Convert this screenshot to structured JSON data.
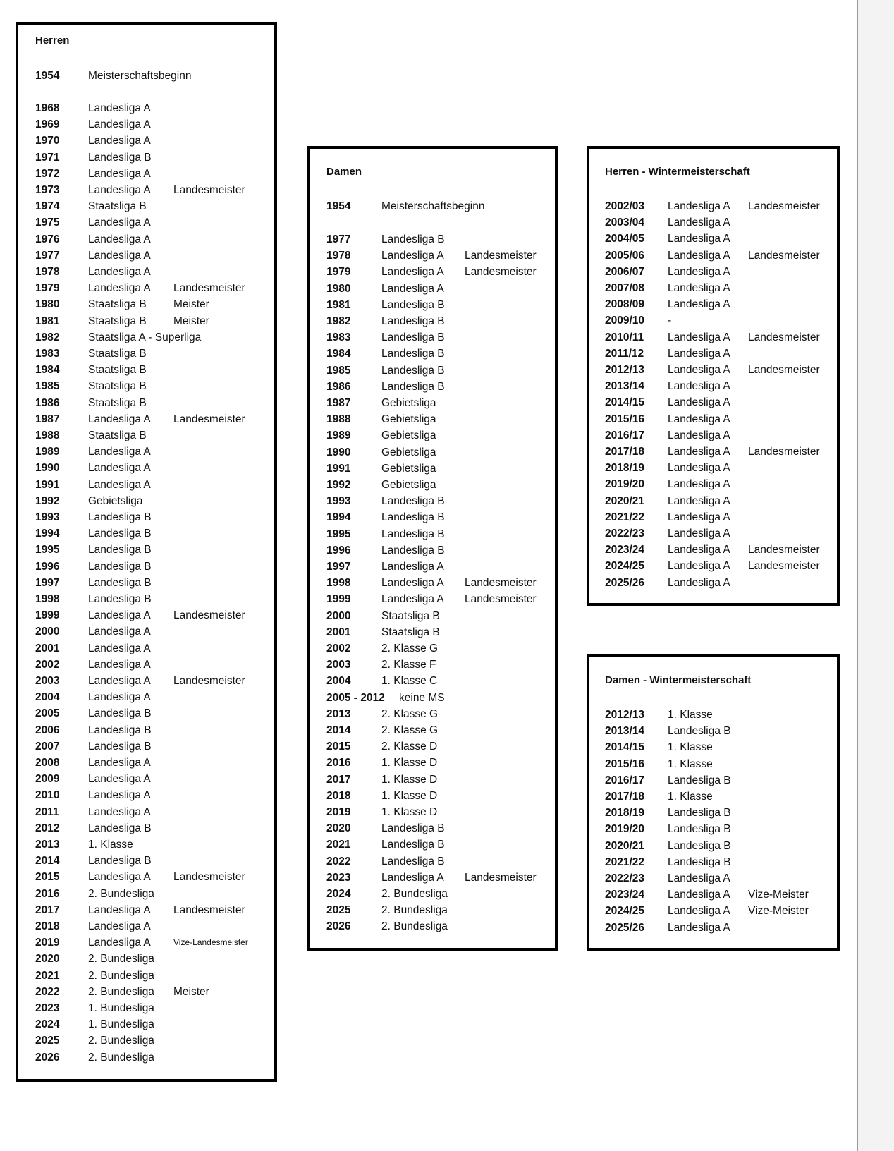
{
  "herren": {
    "title": "Herren",
    "start": [
      "1954",
      "Meisterschaftsbeginn"
    ],
    "rows": [
      [
        "1968",
        "Landesliga A",
        ""
      ],
      [
        "1969",
        "Landesliga A",
        ""
      ],
      [
        "1970",
        "Landesliga A",
        ""
      ],
      [
        "1971",
        "Landesliga B",
        ""
      ],
      [
        "1972",
        "Landesliga A",
        ""
      ],
      [
        "1973",
        "Landesliga A",
        "Landesmeister"
      ],
      [
        "1974",
        "Staatsliga B",
        ""
      ],
      [
        "1975",
        "Landesliga A",
        ""
      ],
      [
        "1976",
        "Landesliga A",
        ""
      ],
      [
        "1977",
        "Landesliga A",
        ""
      ],
      [
        "1978",
        "Landesliga A",
        ""
      ],
      [
        "1979",
        "Landesliga A",
        "Landesmeister"
      ],
      [
        "1980",
        "Staatsliga B",
        "Meister"
      ],
      [
        "1981",
        "Staatsliga B",
        "Meister"
      ],
      [
        "1982",
        "Staatsliga A - Superliga",
        ""
      ],
      [
        "1983",
        "Staatsliga B",
        ""
      ],
      [
        "1984",
        "Staatsliga B",
        ""
      ],
      [
        "1985",
        "Staatsliga B",
        ""
      ],
      [
        "1986",
        "Staatsliga B",
        ""
      ],
      [
        "1987",
        "Landesliga A",
        "Landesmeister"
      ],
      [
        "1988",
        "Staatsliga B",
        ""
      ],
      [
        "1989",
        "Landesliga A",
        ""
      ],
      [
        "1990",
        "Landesliga A",
        ""
      ],
      [
        "1991",
        "Landesliga A",
        ""
      ],
      [
        "1992",
        "Gebietsliga",
        ""
      ],
      [
        "1993",
        "Landesliga B",
        ""
      ],
      [
        "1994",
        "Landesliga B",
        ""
      ],
      [
        "1995",
        "Landesliga B",
        ""
      ],
      [
        "1996",
        "Landesliga B",
        ""
      ],
      [
        "1997",
        "Landesliga B",
        ""
      ],
      [
        "1998",
        "Landesliga B",
        ""
      ],
      [
        "1999",
        "Landesliga A",
        "Landesmeister"
      ],
      [
        "2000",
        "Landesliga A",
        ""
      ],
      [
        "2001",
        "Landesliga A",
        ""
      ],
      [
        "2002",
        "Landesliga A",
        ""
      ],
      [
        "2003",
        "Landesliga A",
        "Landesmeister"
      ],
      [
        "2004",
        "Landesliga A",
        ""
      ],
      [
        "2005",
        "Landesliga B",
        ""
      ],
      [
        "2006",
        "Landesliga B",
        ""
      ],
      [
        "2007",
        "Landesliga B",
        ""
      ],
      [
        "2008",
        "Landesliga A",
        ""
      ],
      [
        "2009",
        "Landesliga A",
        ""
      ],
      [
        "2010",
        "Landesliga A",
        ""
      ],
      [
        "2011",
        "Landesliga A",
        ""
      ],
      [
        "2012",
        "Landesliga B",
        ""
      ],
      [
        "2013",
        "1. Klasse",
        ""
      ],
      [
        "2014",
        "Landesliga B",
        ""
      ],
      [
        "2015",
        "Landesliga A",
        "Landesmeister"
      ],
      [
        "2016",
        "2. Bundesliga",
        ""
      ],
      [
        "2017",
        "Landesliga A",
        "Landesmeister"
      ],
      [
        "2018",
        "Landesliga A",
        ""
      ],
      [
        "2019",
        "Landesliga A",
        "Vize-Landesmeister"
      ],
      [
        "2020",
        "2. Bundesliga",
        ""
      ],
      [
        "2021",
        "2. Bundesliga",
        ""
      ],
      [
        "2022",
        "2. Bundesliga",
        "Meister"
      ],
      [
        "2023",
        "1. Bundesliga",
        ""
      ],
      [
        "2024",
        "1. Bundesliga",
        ""
      ],
      [
        "2025",
        "2. Bundesliga",
        ""
      ],
      [
        "2026",
        "2. Bundesliga",
        ""
      ]
    ]
  },
  "damen": {
    "title": "Damen",
    "start": [
      "1954",
      "Meisterschaftsbeginn"
    ],
    "rows": [
      [
        "1977",
        "Landesliga B",
        ""
      ],
      [
        "1978",
        "Landesliga A",
        "Landesmeister"
      ],
      [
        "1979",
        "Landesliga A",
        "Landesmeister"
      ],
      [
        "1980",
        "Landesliga A",
        ""
      ],
      [
        "1981",
        "Landesliga B",
        ""
      ],
      [
        "1982",
        "Landesliga B",
        ""
      ],
      [
        "1983",
        "Landesliga B",
        ""
      ],
      [
        "1984",
        "Landesliga B",
        ""
      ],
      [
        "1985",
        "Landesliga B",
        ""
      ],
      [
        "1986",
        "Landesliga B",
        ""
      ],
      [
        "1987",
        "Gebietsliga",
        ""
      ],
      [
        "1988",
        "Gebietsliga",
        ""
      ],
      [
        "1989",
        "Gebietsliga",
        ""
      ],
      [
        "1990",
        "Gebietsliga",
        ""
      ],
      [
        "1991",
        "Gebietsliga",
        ""
      ],
      [
        "1992",
        "Gebietsliga",
        ""
      ],
      [
        "1993",
        "Landesliga B",
        ""
      ],
      [
        "1994",
        "Landesliga B",
        ""
      ],
      [
        "1995",
        "Landesliga B",
        ""
      ],
      [
        "1996",
        "Landesliga B",
        ""
      ],
      [
        "1997",
        "Landesliga A",
        ""
      ],
      [
        "1998",
        "Landesliga A",
        "Landesmeister"
      ],
      [
        "1999",
        "Landesliga A",
        "Landesmeister"
      ],
      [
        "2000",
        "Staatsliga B",
        ""
      ],
      [
        "2001",
        "Staatsliga B",
        ""
      ],
      [
        "2002",
        "2. Klasse G",
        ""
      ],
      [
        "2003",
        "2. Klasse F",
        ""
      ],
      [
        "2004",
        "1. Klasse C",
        ""
      ],
      [
        "2005 - 2012",
        "keine MS",
        ""
      ],
      [
        "2013",
        "2. Klasse G",
        ""
      ],
      [
        "2014",
        "2. Klasse G",
        ""
      ],
      [
        "2015",
        "2. Klasse D",
        ""
      ],
      [
        "2016",
        "1. Klasse D",
        ""
      ],
      [
        "2017",
        "1. Klasse D",
        ""
      ],
      [
        "2018",
        "1. Klasse D",
        ""
      ],
      [
        "2019",
        "1. Klasse D",
        ""
      ],
      [
        "2020",
        "Landesliga B",
        ""
      ],
      [
        "2021",
        "Landesliga B",
        ""
      ],
      [
        "2022",
        "Landesliga B",
        ""
      ],
      [
        "2023",
        "Landesliga A",
        "Landesmeister"
      ],
      [
        "2024",
        "2. Bundesliga",
        ""
      ],
      [
        "2025",
        "2. Bundesliga",
        ""
      ],
      [
        "2026",
        "2. Bundesliga",
        ""
      ]
    ]
  },
  "herren_winter": {
    "title": "Herren - Wintermeisterschaft",
    "rows": [
      [
        "2002/03",
        "Landesliga A",
        "Landesmeister"
      ],
      [
        "2003/04",
        "Landesliga A",
        ""
      ],
      [
        "2004/05",
        "Landesliga A",
        ""
      ],
      [
        "2005/06",
        "Landesliga A",
        "Landesmeister"
      ],
      [
        "2006/07",
        "Landesliga A",
        ""
      ],
      [
        "2007/08",
        "Landesliga A",
        ""
      ],
      [
        "2008/09",
        "Landesliga A",
        ""
      ],
      [
        "2009/10",
        "-",
        ""
      ],
      [
        "2010/11",
        "Landesliga A",
        "Landesmeister"
      ],
      [
        "2011/12",
        "Landesliga A",
        ""
      ],
      [
        "2012/13",
        "Landesliga A",
        "Landesmeister"
      ],
      [
        "2013/14",
        "Landesliga A",
        ""
      ],
      [
        "2014/15",
        "Landesliga A",
        ""
      ],
      [
        "2015/16",
        "Landesliga A",
        ""
      ],
      [
        "2016/17",
        "Landesliga A",
        ""
      ],
      [
        "2017/18",
        "Landesliga A",
        "Landesmeister"
      ],
      [
        "2018/19",
        "Landesliga A",
        ""
      ],
      [
        "2019/20",
        "Landesliga A",
        ""
      ],
      [
        "2020/21",
        "Landesliga A",
        ""
      ],
      [
        "2021/22",
        "Landesliga A",
        ""
      ],
      [
        "2022/23",
        "Landesliga A",
        ""
      ],
      [
        "2023/24",
        "Landesliga A",
        "Landesmeister"
      ],
      [
        "2024/25",
        "Landesliga A",
        "Landesmeister"
      ],
      [
        "2025/26",
        "Landesliga A",
        ""
      ]
    ]
  },
  "damen_winter": {
    "title": "Damen - Wintermeisterschaft",
    "rows": [
      [
        "2012/13",
        "1. Klasse",
        ""
      ],
      [
        "2013/14",
        "Landesliga B",
        ""
      ],
      [
        "2014/15",
        "1. Klasse",
        ""
      ],
      [
        "2015/16",
        "1. Klasse",
        ""
      ],
      [
        "2016/17",
        "Landesliga B",
        ""
      ],
      [
        "2017/18",
        "1. Klasse",
        ""
      ],
      [
        "2018/19",
        "Landesliga B",
        ""
      ],
      [
        "2019/20",
        "Landesliga B",
        ""
      ],
      [
        "2020/21",
        "Landesliga B",
        ""
      ],
      [
        "2021/22",
        "Landesliga B",
        ""
      ],
      [
        "2022/23",
        "Landesliga A",
        ""
      ],
      [
        "2023/24",
        "Landesliga A",
        "Vize-Meister"
      ],
      [
        "2024/25",
        "Landesliga A",
        "Vize-Meister"
      ],
      [
        "2025/26",
        "Landesliga A",
        ""
      ]
    ]
  }
}
